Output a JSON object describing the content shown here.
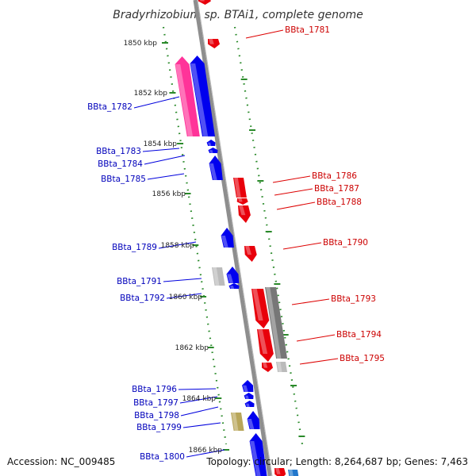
{
  "title": "Bradyrhizobium sp. BTAi1, complete genome",
  "accession": "Accession: NC_009485",
  "topology": "Topology: circular; Length: 8,264,687 bp; Genes: 7,463",
  "colors": {
    "forward": "#e8000b",
    "reverse": "#0000ee",
    "rna": "#ff3399",
    "pseudo": "#777777",
    "light_gray": "#bbbbbb",
    "other": "#b8a65a",
    "scale": "#2a8a2a",
    "backbone": "#8e8e8e"
  },
  "scale_labels": [
    "1850 kbp",
    "1852 kbp",
    "1854 kbp",
    "1856 kbp",
    "1858 kbp",
    "1860 kbp",
    "1862 kbp",
    "1864 kbp",
    "1866 kbp"
  ],
  "reverse_labels": [
    "BBta_1782",
    "BBta_1783",
    "BBta_1784",
    "BBta_1785",
    "BBta_1789",
    "BBta_1791",
    "BBta_1792",
    "BBta_1796",
    "BBta_1797",
    "BBta_1798",
    "BBta_1799",
    "BBta_1800"
  ],
  "forward_labels": [
    "BBta_1781",
    "BBta_1786",
    "BBta_1787",
    "BBta_1788",
    "BBta_1790",
    "BBta_1793",
    "BBta_1794",
    "BBta_1795"
  ]
}
